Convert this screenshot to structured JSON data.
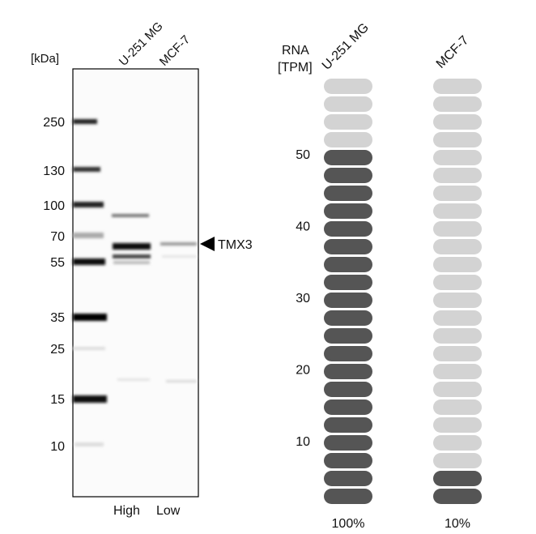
{
  "blot": {
    "unit_label": "[kDa]",
    "lanes": [
      "U-251 MG",
      "MCF-7"
    ],
    "markers": [
      "250",
      "130",
      "100",
      "70",
      "55",
      "35",
      "25",
      "15",
      "10"
    ],
    "target_label": "TMX3",
    "expression": [
      "High",
      "Low"
    ]
  },
  "chart_data": {
    "type": "bar",
    "title": "",
    "ylabel_line1": "RNA",
    "ylabel_line2": "[TPM]",
    "categories": [
      "U-251 MG",
      "MCF-7"
    ],
    "segments_total": 24,
    "segments_filled": [
      20,
      2
    ],
    "values_tpm": [
      50,
      5
    ],
    "ticks": [
      "10",
      "20",
      "30",
      "40",
      "50"
    ],
    "tick_values": [
      10,
      20,
      30,
      40,
      50
    ],
    "percent_labels": [
      "100%",
      "10%"
    ],
    "colors": {
      "filled": "#555555",
      "empty": "#d3d3d3"
    }
  }
}
